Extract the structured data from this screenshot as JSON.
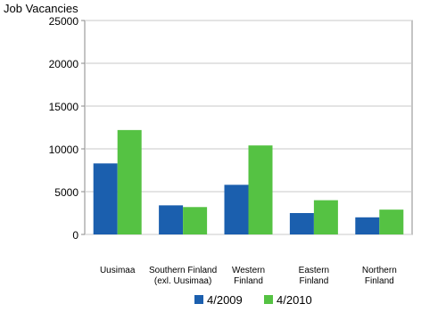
{
  "chart_data": {
    "type": "bar",
    "y_axis_label": "Job Vacancies",
    "categories": [
      "Uusimaa",
      "Southern Finland\n(exl. Uusimaa)",
      "Western\nFinland",
      "Eastern\nFinland",
      "Northern\nFinland"
    ],
    "series": [
      {
        "name": "4/2009",
        "color": "#1b5fae",
        "values": [
          8300,
          3400,
          5800,
          2500,
          2000
        ]
      },
      {
        "name": "4/2010",
        "color": "#55c243",
        "values": [
          12200,
          3200,
          10400,
          4000,
          2900
        ]
      }
    ],
    "ylim": [
      0,
      25000
    ],
    "yticks": [
      0,
      5000,
      10000,
      15000,
      20000,
      25000
    ],
    "grid": true
  }
}
